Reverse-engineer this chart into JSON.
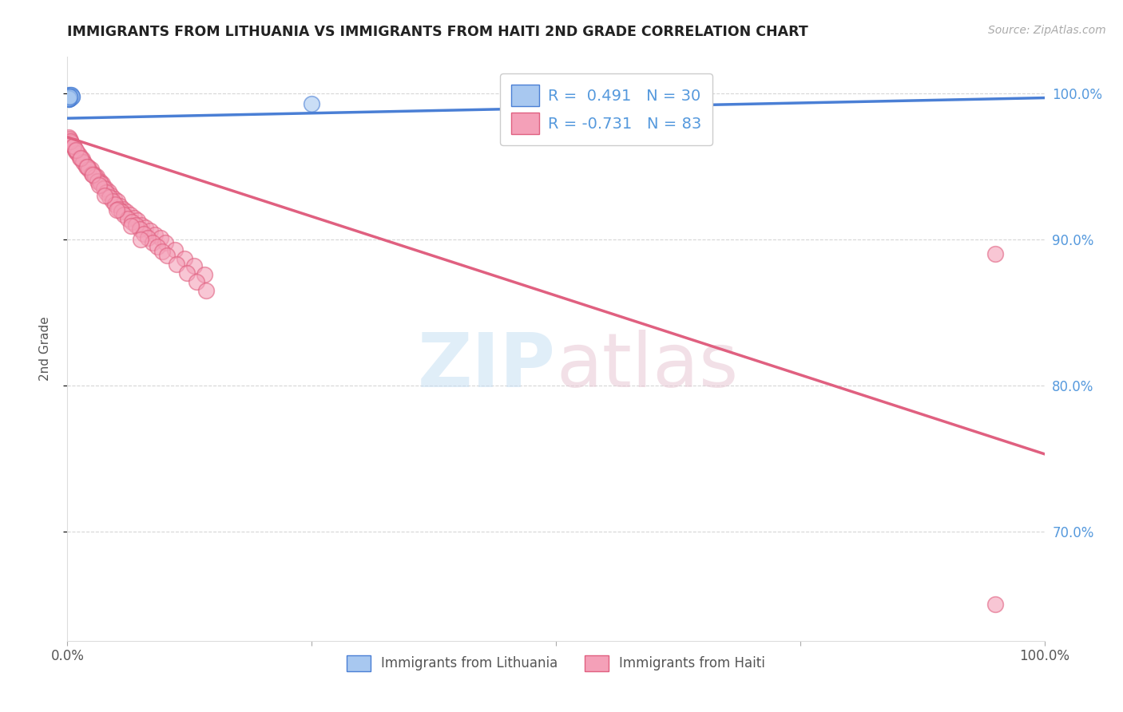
{
  "title": "IMMIGRANTS FROM LITHUANIA VS IMMIGRANTS FROM HAITI 2ND GRADE CORRELATION CHART",
  "source_text": "Source: ZipAtlas.com",
  "ylabel": "2nd Grade",
  "r_lithuania": 0.491,
  "n_lithuania": 30,
  "r_haiti": -0.731,
  "n_haiti": 83,
  "watermark_zip": "ZIP",
  "watermark_atlas": "atlas",
  "color_lithuania": "#a8c8f0",
  "color_haiti": "#f4a0b8",
  "line_color_lithuania": "#4a7fd5",
  "line_color_haiti": "#e06080",
  "background_color": "#ffffff",
  "grid_color": "#cccccc",
  "title_color": "#222222",
  "right_axis_color": "#5599dd",
  "xmin": 0.0,
  "xmax": 1.0,
  "ymin": 0.625,
  "ymax": 1.025,
  "yticks": [
    0.7,
    0.8,
    0.9,
    1.0
  ],
  "ytick_labels": [
    "70.0%",
    "80.0%",
    "90.0%",
    "100.0%"
  ],
  "lith_line_x0": 0.0,
  "lith_line_y0": 0.983,
  "lith_line_x1": 1.0,
  "lith_line_y1": 0.997,
  "haiti_line_x0": 0.0,
  "haiti_line_y0": 0.97,
  "haiti_line_x1": 1.0,
  "haiti_line_y1": 0.753,
  "lithuania_x": [
    0.001,
    0.002,
    0.001,
    0.003,
    0.002,
    0.001,
    0.0015,
    0.001,
    0.002,
    0.003,
    0.004,
    0.005,
    0.003,
    0.002,
    0.001,
    0.002,
    0.003,
    0.0025,
    0.001,
    0.0015,
    0.002,
    0.001,
    0.003,
    0.004,
    0.005,
    0.001,
    0.002,
    0.001,
    0.002,
    0.25
  ],
  "lithuania_y": [
    0.998,
    0.999,
    0.997,
    0.998,
    0.997,
    0.996,
    0.998,
    0.999,
    0.997,
    0.998,
    0.999,
    0.998,
    0.997,
    0.998,
    0.996,
    0.997,
    0.998,
    0.997,
    0.996,
    0.997,
    0.998,
    0.997,
    0.998,
    0.999,
    0.998,
    0.997,
    0.998,
    0.997,
    0.998,
    0.993
  ],
  "haiti_x": [
    0.001,
    0.003,
    0.005,
    0.007,
    0.009,
    0.012,
    0.015,
    0.018,
    0.021,
    0.024,
    0.027,
    0.03,
    0.033,
    0.036,
    0.039,
    0.042,
    0.045,
    0.048,
    0.051,
    0.054,
    0.057,
    0.06,
    0.064,
    0.068,
    0.072,
    0.076,
    0.08,
    0.085,
    0.09,
    0.095,
    0.1,
    0.11,
    0.12,
    0.13,
    0.14,
    0.002,
    0.004,
    0.006,
    0.008,
    0.01,
    0.013,
    0.016,
    0.019,
    0.022,
    0.025,
    0.028,
    0.031,
    0.034,
    0.037,
    0.04,
    0.043,
    0.046,
    0.049,
    0.052,
    0.055,
    0.058,
    0.062,
    0.066,
    0.07,
    0.074,
    0.078,
    0.082,
    0.087,
    0.092,
    0.097,
    0.102,
    0.112,
    0.122,
    0.132,
    0.142,
    0.003,
    0.006,
    0.009,
    0.014,
    0.02,
    0.026,
    0.032,
    0.038,
    0.05,
    0.065,
    0.075,
    0.95,
    0.95
  ],
  "haiti_y": [
    0.97,
    0.968,
    0.965,
    0.963,
    0.96,
    0.958,
    0.955,
    0.952,
    0.95,
    0.948,
    0.945,
    0.943,
    0.94,
    0.938,
    0.935,
    0.933,
    0.93,
    0.928,
    0.926,
    0.923,
    0.921,
    0.919,
    0.917,
    0.915,
    0.913,
    0.91,
    0.908,
    0.906,
    0.903,
    0.901,
    0.898,
    0.893,
    0.887,
    0.882,
    0.876,
    0.969,
    0.966,
    0.964,
    0.961,
    0.959,
    0.956,
    0.953,
    0.95,
    0.948,
    0.945,
    0.943,
    0.94,
    0.938,
    0.935,
    0.932,
    0.929,
    0.926,
    0.924,
    0.921,
    0.919,
    0.917,
    0.914,
    0.912,
    0.91,
    0.907,
    0.904,
    0.901,
    0.898,
    0.895,
    0.892,
    0.889,
    0.883,
    0.877,
    0.871,
    0.865,
    0.967,
    0.964,
    0.961,
    0.956,
    0.95,
    0.944,
    0.937,
    0.93,
    0.92,
    0.909,
    0.9,
    0.89,
    0.65
  ]
}
